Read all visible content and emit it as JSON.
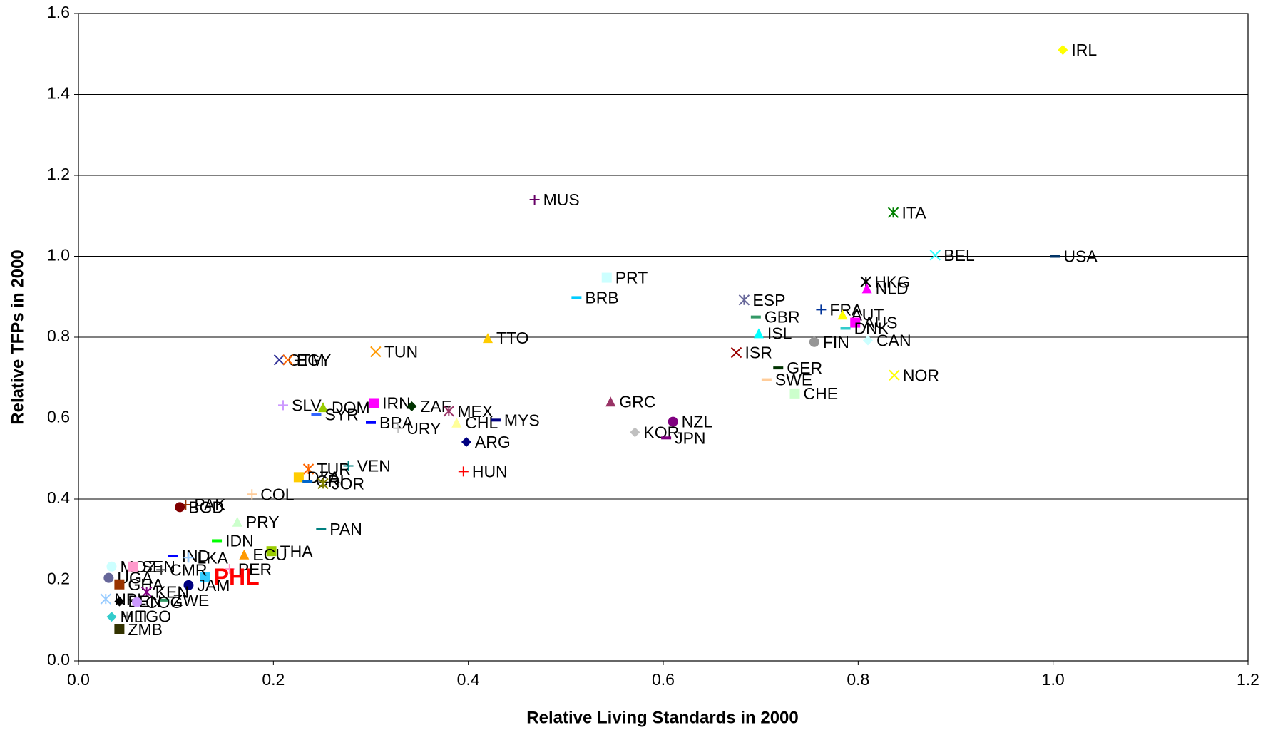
{
  "chart_data": {
    "type": "scatter",
    "x_label": "Relative Living Standards in 2000",
    "y_label": "Relative TFPs in 2000",
    "xlim": [
      0,
      1.2
    ],
    "ylim": [
      0,
      1.6
    ],
    "xticks": [
      {
        "value": 0,
        "label": "0.0"
      },
      {
        "value": 0.2,
        "label": "0.2"
      },
      {
        "value": 0.4,
        "label": "0.4"
      },
      {
        "value": 0.6,
        "label": "0.6"
      },
      {
        "value": 0.8,
        "label": "0.8"
      },
      {
        "value": 1.0,
        "label": "1.0"
      },
      {
        "value": 1.2,
        "label": "1.2"
      }
    ],
    "yticks": [
      {
        "value": 0,
        "label": "0.0"
      },
      {
        "value": 0.2,
        "label": "0.2"
      },
      {
        "value": 0.4,
        "label": "0.4"
      },
      {
        "value": 0.6,
        "label": "0.6"
      },
      {
        "value": 0.8,
        "label": "0.8"
      },
      {
        "value": 1.0,
        "label": "1.0"
      },
      {
        "value": 1.2,
        "label": "1.2"
      },
      {
        "value": 1.4,
        "label": "1.4"
      },
      {
        "value": 1.6,
        "label": "1.6"
      }
    ],
    "grid": true,
    "points": [
      {
        "name": "IRL",
        "x": 1.01,
        "y": 1.51,
        "color": "#ffff00",
        "marker": "diamond"
      },
      {
        "name": "MUS",
        "x": 0.468,
        "y": 1.14,
        "color": "#660066",
        "marker": "plus"
      },
      {
        "name": "ITA",
        "x": 0.836,
        "y": 1.108,
        "color": "#008000",
        "marker": "asterisk"
      },
      {
        "name": "BEL",
        "x": 0.879,
        "y": 1.003,
        "color": "#33ffff",
        "marker": "x"
      },
      {
        "name": "USA",
        "x": 1.002,
        "y": 1.0,
        "color": "#003366",
        "marker": "dash"
      },
      {
        "name": "PRT",
        "x": 0.542,
        "y": 0.947,
        "color": "#ccffff",
        "marker": "square"
      },
      {
        "name": "BRB",
        "x": 0.511,
        "y": 0.898,
        "color": "#00ccff",
        "marker": "dash"
      },
      {
        "name": "HKG",
        "x": 0.808,
        "y": 0.937,
        "color": "#000000",
        "marker": "asterisk"
      },
      {
        "name": "NLD",
        "x": 0.809,
        "y": 0.921,
        "color": "#ff00ff",
        "marker": "triangle"
      },
      {
        "name": "ESP",
        "x": 0.683,
        "y": 0.892,
        "color": "#666699",
        "marker": "asterisk"
      },
      {
        "name": "FRA",
        "x": 0.762,
        "y": 0.868,
        "color": "#003399",
        "marker": "plus"
      },
      {
        "name": "GBR",
        "x": 0.695,
        "y": 0.85,
        "color": "#339966",
        "marker": "dash"
      },
      {
        "name": "AUT",
        "x": 0.784,
        "y": 0.856,
        "color": "#ffff00",
        "marker": "triangle"
      },
      {
        "name": "AUS",
        "x": 0.797,
        "y": 0.836,
        "color": "#ff00ff",
        "marker": "square"
      },
      {
        "name": "DNK",
        "x": 0.787,
        "y": 0.822,
        "color": "#33cccc",
        "marker": "dash"
      },
      {
        "name": "ISL",
        "x": 0.698,
        "y": 0.81,
        "color": "#00ffff",
        "marker": "triangle"
      },
      {
        "name": "FIN",
        "x": 0.755,
        "y": 0.788,
        "color": "#969696",
        "marker": "circle"
      },
      {
        "name": "CAN",
        "x": 0.81,
        "y": 0.792,
        "color": "#ccffff",
        "marker": "diamond"
      },
      {
        "name": "TTO",
        "x": 0.42,
        "y": 0.798,
        "color": "#ffcc00",
        "marker": "triangle"
      },
      {
        "name": "TUN",
        "x": 0.305,
        "y": 0.764,
        "color": "#ff9900",
        "marker": "x"
      },
      {
        "name": "ISR",
        "x": 0.675,
        "y": 0.762,
        "color": "#990000",
        "marker": "x"
      },
      {
        "name": "GTM",
        "x": 0.206,
        "y": 0.744,
        "color": "#333399",
        "marker": "x"
      },
      {
        "name": "EGY",
        "x": 0.215,
        "y": 0.744,
        "color": "#ff6600",
        "marker": "x"
      },
      {
        "name": "GER",
        "x": 0.718,
        "y": 0.724,
        "color": "#003300",
        "marker": "dash"
      },
      {
        "name": "SWE",
        "x": 0.706,
        "y": 0.695,
        "color": "#ffcc99",
        "marker": "dash"
      },
      {
        "name": "NOR",
        "x": 0.837,
        "y": 0.706,
        "color": "#ffff00",
        "marker": "x"
      },
      {
        "name": "CHE",
        "x": 0.735,
        "y": 0.661,
        "color": "#ccffcc",
        "marker": "square"
      },
      {
        "name": "GRC",
        "x": 0.546,
        "y": 0.641,
        "color": "#993366",
        "marker": "triangle"
      },
      {
        "name": "SLV",
        "x": 0.21,
        "y": 0.632,
        "color": "#cc99ff",
        "marker": "plus"
      },
      {
        "name": "DOM",
        "x": 0.251,
        "y": 0.627,
        "color": "#99cc00",
        "marker": "triangle"
      },
      {
        "name": "IRN",
        "x": 0.303,
        "y": 0.637,
        "color": "#ff00ff",
        "marker": "square"
      },
      {
        "name": "ZAF",
        "x": 0.342,
        "y": 0.629,
        "color": "#003300",
        "marker": "diamond"
      },
      {
        "name": "MEX",
        "x": 0.38,
        "y": 0.617,
        "color": "#993366",
        "marker": "asterisk"
      },
      {
        "name": "SYR",
        "x": 0.244,
        "y": 0.609,
        "color": "#3366ff",
        "marker": "dash"
      },
      {
        "name": "CHL",
        "x": 0.388,
        "y": 0.589,
        "color": "#ffff99",
        "marker": "triangle"
      },
      {
        "name": "MYS",
        "x": 0.428,
        "y": 0.595,
        "color": "#000080",
        "marker": "dash"
      },
      {
        "name": "BRA",
        "x": 0.3,
        "y": 0.589,
        "color": "#0000ff",
        "marker": "dash"
      },
      {
        "name": "URY",
        "x": 0.328,
        "y": 0.575,
        "color": "#c0c0c0",
        "marker": "plus"
      },
      {
        "name": "NZL",
        "x": 0.61,
        "y": 0.591,
        "color": "#800080",
        "marker": "circle"
      },
      {
        "name": "KOR",
        "x": 0.571,
        "y": 0.565,
        "color": "#c0c0c0",
        "marker": "diamond"
      },
      {
        "name": "JPN",
        "x": 0.603,
        "y": 0.551,
        "color": "#800080",
        "marker": "dash"
      },
      {
        "name": "ARG",
        "x": 0.398,
        "y": 0.541,
        "color": "#000080",
        "marker": "diamond"
      },
      {
        "name": "HUN",
        "x": 0.395,
        "y": 0.468,
        "color": "#ff0000",
        "marker": "plus"
      },
      {
        "name": "TUR",
        "x": 0.236,
        "y": 0.474,
        "color": "#ff6600",
        "marker": "asterisk"
      },
      {
        "name": "VEN",
        "x": 0.277,
        "y": 0.482,
        "color": "#008080",
        "marker": "plus"
      },
      {
        "name": "DZA",
        "x": 0.226,
        "y": 0.454,
        "color": "#ffcc00",
        "marker": "square"
      },
      {
        "name": "CRI",
        "x": 0.235,
        "y": 0.444,
        "color": "#0066cc",
        "marker": "dash"
      },
      {
        "name": "JOR",
        "x": 0.251,
        "y": 0.438,
        "color": "#808000",
        "marker": "asterisk"
      },
      {
        "name": "COL",
        "x": 0.178,
        "y": 0.412,
        "color": "#ffcc99",
        "marker": "plus"
      },
      {
        "name": "PAK",
        "x": 0.11,
        "y": 0.386,
        "color": "#993300",
        "marker": "plus"
      },
      {
        "name": "BGD",
        "x": 0.104,
        "y": 0.38,
        "color": "#800000",
        "marker": "circle"
      },
      {
        "name": "PRY",
        "x": 0.163,
        "y": 0.344,
        "color": "#ccffcc",
        "marker": "triangle"
      },
      {
        "name": "PAN",
        "x": 0.249,
        "y": 0.326,
        "color": "#008080",
        "marker": "dash"
      },
      {
        "name": "IDN",
        "x": 0.142,
        "y": 0.297,
        "color": "#00ff00",
        "marker": "dash"
      },
      {
        "name": "THA",
        "x": 0.198,
        "y": 0.271,
        "color": "#99cc00",
        "marker": "square"
      },
      {
        "name": "ECU",
        "x": 0.17,
        "y": 0.263,
        "color": "#ff9900",
        "marker": "triangle"
      },
      {
        "name": "IND",
        "x": 0.097,
        "y": 0.259,
        "color": "#0000ff",
        "marker": "dash"
      },
      {
        "name": "LKA",
        "x": 0.113,
        "y": 0.255,
        "color": "#99ccff",
        "marker": "plus"
      },
      {
        "name": "PER",
        "x": 0.155,
        "y": 0.227,
        "color": "#ff99cc",
        "marker": "plus"
      },
      {
        "name": "PHL",
        "x": 0.13,
        "y": 0.207,
        "color": "#33ccff",
        "marker": "square",
        "highlight": true
      },
      {
        "name": "JAM",
        "x": 0.113,
        "y": 0.187,
        "color": "#000080",
        "marker": "circle"
      },
      {
        "name": "MOZ",
        "x": 0.034,
        "y": 0.233,
        "color": "#ccffff",
        "marker": "circle"
      },
      {
        "name": "SEN",
        "x": 0.056,
        "y": 0.233,
        "color": "#ff99cc",
        "marker": "square"
      },
      {
        "name": "CMR",
        "x": 0.085,
        "y": 0.225,
        "color": "#333333",
        "marker": "plus"
      },
      {
        "name": "UGA",
        "x": 0.031,
        "y": 0.205,
        "color": "#666699",
        "marker": "circle"
      },
      {
        "name": "GHA",
        "x": 0.042,
        "y": 0.189,
        "color": "#993300",
        "marker": "square"
      },
      {
        "name": "KEN",
        "x": 0.07,
        "y": 0.17,
        "color": "#800080",
        "marker": "asterisk"
      },
      {
        "name": "NPL",
        "x": 0.028,
        "y": 0.153,
        "color": "#99ccff",
        "marker": "asterisk"
      },
      {
        "name": "ZWE",
        "x": 0.088,
        "y": 0.15,
        "color": "#339966",
        "marker": "dash"
      },
      {
        "name": "BEN",
        "x": 0.042,
        "y": 0.147,
        "color": "#000000",
        "marker": "diamond"
      },
      {
        "name": "COG",
        "x": 0.06,
        "y": 0.145,
        "color": "#cc99ff",
        "marker": "circle"
      },
      {
        "name": "TGO",
        "x": 0.05,
        "y": 0.11,
        "color": "#808080",
        "marker": "plus"
      },
      {
        "name": "MLI",
        "x": 0.034,
        "y": 0.109,
        "color": "#33cccc",
        "marker": "diamond"
      },
      {
        "name": "ZMB",
        "x": 0.042,
        "y": 0.078,
        "color": "#333300",
        "marker": "square"
      }
    ]
  }
}
